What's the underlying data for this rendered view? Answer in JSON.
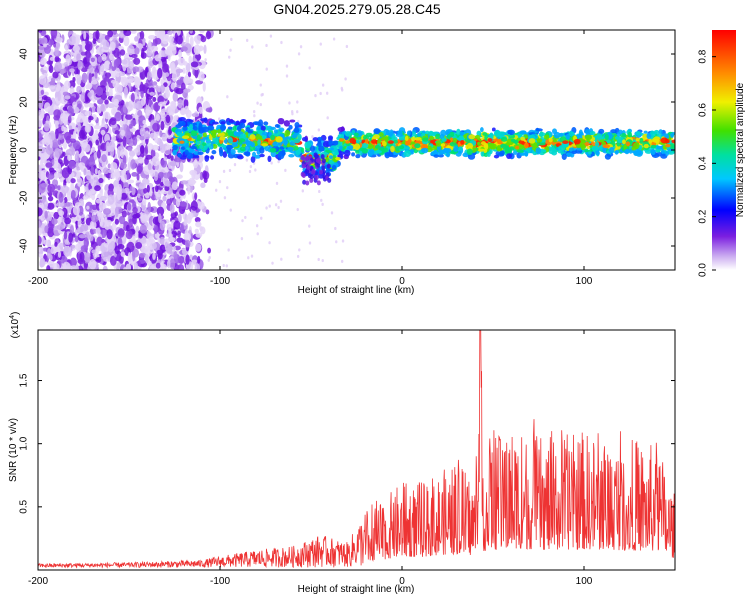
{
  "title": "GN04.2025.279.05.28.C45",
  "chart_data": [
    {
      "type": "heatmap",
      "name": "spectrogram",
      "xlabel": "Height of straight line (km)",
      "ylabel": "Frequency (Hz)",
      "xlim": [
        -200,
        150
      ],
      "ylim": [
        -50,
        50
      ],
      "xticks": [
        -200,
        -100,
        0,
        100
      ],
      "yticks": [
        -40,
        -20,
        0,
        20,
        40
      ],
      "colorbar": {
        "label": "Normalized spectral amplitude",
        "range": [
          0,
          0.9
        ],
        "ticks": [
          0.0,
          0.2,
          0.4,
          0.6,
          0.8
        ]
      },
      "features": {
        "noise_region_x": [
          -200,
          -110
        ],
        "signal_band_x": [
          -125,
          150
        ],
        "signal_band_center_hz": 3,
        "signal_band_halfwidth_hz": 6
      }
    },
    {
      "type": "line",
      "name": "snr",
      "xlabel": "Height of straight line (km)",
      "ylabel": "SNR (10 * v/v)",
      "scale_label": "(x10",
      "scale_exp": "4",
      "scale_close": ")",
      "xlim": [
        -200,
        150
      ],
      "ylim": [
        0,
        1.9
      ],
      "xticks": [
        -200,
        -100,
        0,
        100
      ],
      "yticks": [
        "0.5",
        "1.0",
        "1.5"
      ],
      "ytick_values": [
        0.5,
        1.0,
        1.5
      ],
      "color": "#ee3333",
      "envelope": {
        "x": [
          -200,
          -150,
          -110,
          -100,
          -80,
          -60,
          -45,
          -30,
          -20,
          -10,
          0,
          10,
          20,
          30,
          40,
          43,
          45,
          60,
          80,
          100,
          120,
          140,
          150
        ],
        "y": [
          0.03,
          0.04,
          0.06,
          0.09,
          0.14,
          0.17,
          0.26,
          0.2,
          0.45,
          0.55,
          0.72,
          0.68,
          0.78,
          0.85,
          0.75,
          1.95,
          1.0,
          1.15,
          1.05,
          1.1,
          1.05,
          1.0,
          0.6
        ]
      }
    }
  ]
}
